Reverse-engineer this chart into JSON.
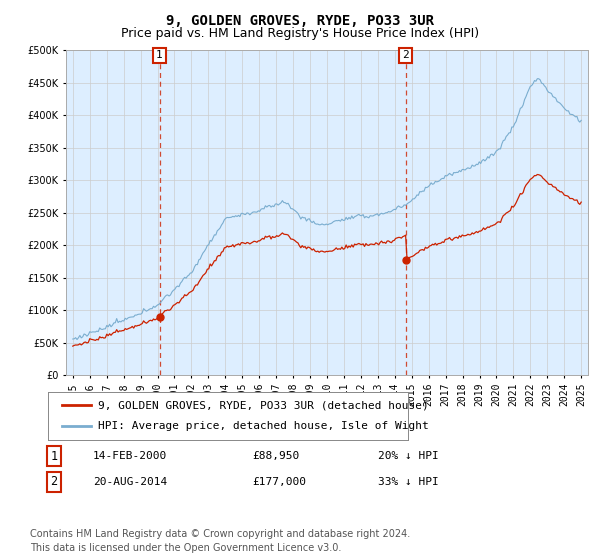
{
  "title": "9, GOLDEN GROVES, RYDE, PO33 3UR",
  "subtitle": "Price paid vs. HM Land Registry's House Price Index (HPI)",
  "ylim": [
    0,
    500000
  ],
  "yticks": [
    0,
    50000,
    100000,
    150000,
    200000,
    250000,
    300000,
    350000,
    400000,
    450000,
    500000
  ],
  "sale1_year": 2000.12,
  "sale1_price": 88950,
  "sale2_year": 2014.64,
  "sale2_price": 177000,
  "legend1": "9, GOLDEN GROVES, RYDE, PO33 3UR (detached house)",
  "legend2": "HPI: Average price, detached house, Isle of Wight",
  "annot1_date": "14-FEB-2000",
  "annot1_price": "£88,950",
  "annot1_pct": "20% ↓ HPI",
  "annot2_date": "20-AUG-2014",
  "annot2_price": "£177,000",
  "annot2_pct": "33% ↓ HPI",
  "footnote_line1": "Contains HM Land Registry data © Crown copyright and database right 2024.",
  "footnote_line2": "This data is licensed under the Open Government Licence v3.0.",
  "line_color_red": "#cc2200",
  "line_color_blue": "#7aadcf",
  "vline_color": "#cc2200",
  "grid_color": "#cccccc",
  "background_color": "#ffffff",
  "plot_bg_color": "#ddeeff",
  "title_fontsize": 10,
  "subtitle_fontsize": 9,
  "tick_fontsize": 7,
  "legend_fontsize": 8,
  "annot_fontsize": 8,
  "footnote_fontsize": 7
}
